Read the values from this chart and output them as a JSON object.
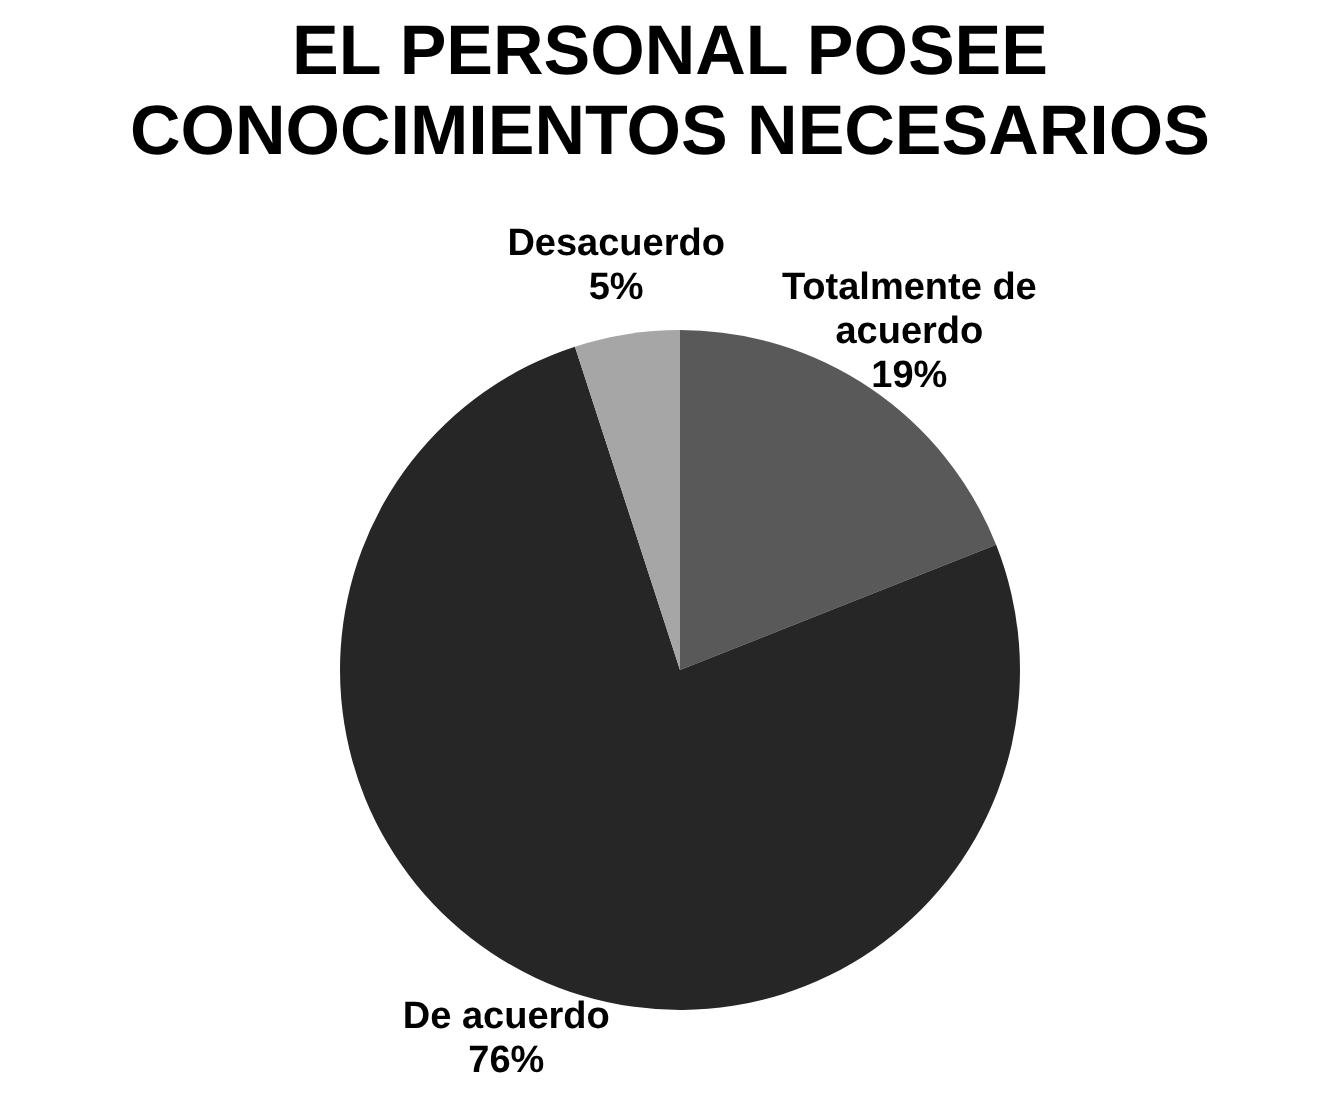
{
  "chart_data": {
    "type": "pie",
    "title": "EL PERSONAL POSEE CONOCIMIENTOS NECESARIOS",
    "categories": [
      "Totalmente de acuerdo",
      "De acuerdo",
      "Desacuerdo"
    ],
    "values": [
      19,
      76,
      5
    ],
    "colors": [
      "#595959",
      "#262626",
      "#a6a6a6"
    ],
    "value_labels": [
      "19%",
      "76%",
      "5%"
    ],
    "legend": false
  }
}
